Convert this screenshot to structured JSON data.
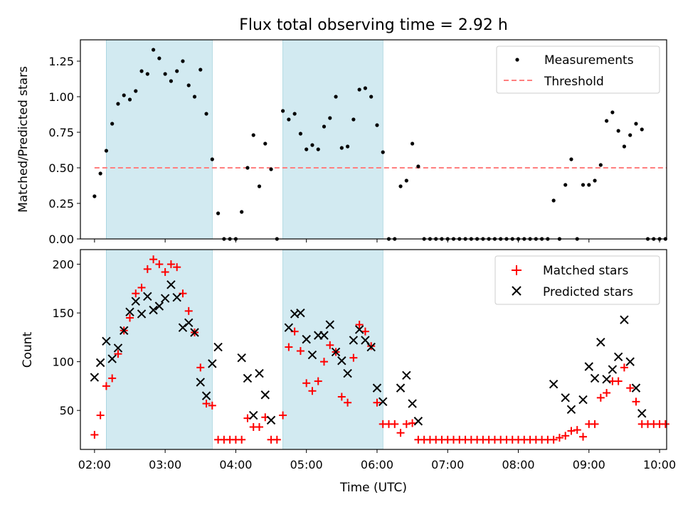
{
  "chart_data": {
    "type": "scatter",
    "title": "Flux total observing time = 2.92 h",
    "xlabel": "Time (UTC)",
    "x_ticks": [
      "02:00",
      "03:00",
      "04:00",
      "05:00",
      "06:00",
      "07:00",
      "08:00",
      "09:00",
      "10:00"
    ],
    "xlim": [
      "01:48",
      "10:06"
    ],
    "shaded_intervals": [
      [
        "02:10",
        "03:40"
      ],
      [
        "04:40",
        "06:05"
      ]
    ],
    "colors": {
      "shade": "#add8e6",
      "threshold": "#ff7f7f",
      "matched": "#ff0000",
      "predicted": "#000000",
      "measurements": "#000000"
    },
    "top_panel": {
      "ylabel": "Matched/Predicted stars",
      "ylim": [
        0,
        1.4
      ],
      "y_ticks": [
        "0.00",
        "0.25",
        "0.50",
        "0.75",
        "1.00",
        "1.25"
      ],
      "legend": [
        "Measurements",
        "Threshold"
      ],
      "legend_position": "upper right",
      "threshold": {
        "value": 0.5,
        "x_range": [
          "02:00",
          "10:06"
        ]
      },
      "series": [
        {
          "name": "Measurements",
          "x": [
            "02:00",
            "02:05",
            "02:10",
            "02:15",
            "02:20",
            "02:25",
            "02:30",
            "02:35",
            "02:40",
            "02:45",
            "02:50",
            "02:55",
            "03:00",
            "03:05",
            "03:10",
            "03:15",
            "03:20",
            "03:25",
            "03:30",
            "03:35",
            "03:40",
            "03:45",
            "03:50",
            "03:55",
            "04:00",
            "04:05",
            "04:10",
            "04:15",
            "04:20",
            "04:25",
            "04:30",
            "04:35",
            "04:40",
            "04:45",
            "04:50",
            "04:55",
            "05:00",
            "05:05",
            "05:10",
            "05:15",
            "05:20",
            "05:25",
            "05:30",
            "05:35",
            "05:40",
            "05:45",
            "05:50",
            "05:55",
            "06:00",
            "06:05",
            "06:10",
            "06:15",
            "06:20",
            "06:25",
            "06:30",
            "06:35",
            "06:40",
            "06:45",
            "06:50",
            "06:55",
            "07:00",
            "07:05",
            "07:10",
            "07:15",
            "07:20",
            "07:25",
            "07:30",
            "07:35",
            "07:40",
            "07:45",
            "07:50",
            "07:55",
            "08:00",
            "08:05",
            "08:10",
            "08:15",
            "08:20",
            "08:25",
            "08:30",
            "08:35",
            "08:40",
            "08:45",
            "08:50",
            "08:55",
            "09:00",
            "09:05",
            "09:10",
            "09:15",
            "09:20",
            "09:25",
            "09:30",
            "09:35",
            "09:40",
            "09:45",
            "09:50",
            "09:55",
            "10:00",
            "10:05"
          ],
          "y": [
            0.3,
            0.46,
            0.62,
            0.81,
            0.95,
            1.01,
            0.98,
            1.04,
            1.18,
            1.16,
            1.33,
            1.27,
            1.16,
            1.11,
            1.18,
            1.25,
            1.08,
            1.0,
            1.19,
            0.88,
            0.56,
            0.18,
            0.0,
            0.0,
            0.0,
            0.19,
            0.5,
            0.73,
            0.37,
            0.67,
            0.49,
            0.0,
            0.9,
            0.84,
            0.88,
            0.74,
            0.63,
            0.66,
            0.63,
            0.79,
            0.85,
            1.0,
            0.64,
            0.65,
            0.84,
            1.05,
            1.06,
            1.0,
            0.8,
            0.61,
            0.0,
            0.0,
            0.37,
            0.41,
            0.67,
            0.51,
            0.0,
            0.0,
            0.0,
            0.0,
            0.0,
            0.0,
            0.0,
            0.0,
            0.0,
            0.0,
            0.0,
            0.0,
            0.0,
            0.0,
            0.0,
            0.0,
            0.0,
            0.0,
            0.0,
            0.0,
            0.0,
            0.0,
            0.27,
            0.0,
            0.38,
            0.56,
            0.0,
            0.38,
            0.38,
            0.41,
            0.52,
            0.83,
            0.89,
            0.76,
            0.65,
            0.73,
            0.81,
            0.77,
            0.0,
            0.0,
            0.0,
            0.0
          ]
        }
      ]
    },
    "bottom_panel": {
      "ylabel": "Count",
      "ylim": [
        10,
        215
      ],
      "y_ticks": [
        "50",
        "100",
        "150",
        "200"
      ],
      "legend": [
        "Matched stars",
        "Predicted stars"
      ],
      "legend_position": "upper right",
      "series": [
        {
          "name": "Matched stars",
          "marker": "+",
          "x": [
            "02:00",
            "02:05",
            "02:10",
            "02:15",
            "02:20",
            "02:25",
            "02:30",
            "02:35",
            "02:40",
            "02:45",
            "02:50",
            "02:55",
            "03:00",
            "03:05",
            "03:10",
            "03:15",
            "03:20",
            "03:25",
            "03:30",
            "03:35",
            "03:40",
            "03:45",
            "03:50",
            "03:55",
            "04:00",
            "04:05",
            "04:10",
            "04:15",
            "04:20",
            "04:25",
            "04:30",
            "04:35",
            "04:40",
            "04:45",
            "04:50",
            "04:55",
            "05:00",
            "05:05",
            "05:10",
            "05:15",
            "05:20",
            "05:25",
            "05:30",
            "05:35",
            "05:40",
            "05:45",
            "05:50",
            "05:55",
            "06:00",
            "06:05",
            "06:10",
            "06:15",
            "06:20",
            "06:25",
            "06:30",
            "06:35",
            "06:40",
            "06:45",
            "06:50",
            "06:55",
            "07:00",
            "07:05",
            "07:10",
            "07:15",
            "07:20",
            "07:25",
            "07:30",
            "07:35",
            "07:40",
            "07:45",
            "07:50",
            "07:55",
            "08:00",
            "08:05",
            "08:10",
            "08:15",
            "08:20",
            "08:25",
            "08:30",
            "08:35",
            "08:40",
            "08:45",
            "08:50",
            "08:55",
            "09:00",
            "09:05",
            "09:10",
            "09:15",
            "09:20",
            "09:25",
            "09:30",
            "09:35",
            "09:40",
            "09:45",
            "09:50",
            "09:55",
            "10:00",
            "10:05"
          ],
          "y": [
            25,
            45,
            75,
            83,
            108,
            132,
            145,
            170,
            176,
            195,
            205,
            200,
            192,
            200,
            197,
            170,
            152,
            130,
            94,
            57,
            55,
            20,
            20,
            20,
            20,
            20,
            42,
            33,
            33,
            43,
            20,
            20,
            45,
            115,
            131,
            111,
            78,
            70,
            80,
            100,
            117,
            110,
            64,
            58,
            104,
            138,
            131,
            116,
            58,
            36,
            36,
            36,
            27,
            36,
            37,
            20,
            20,
            20,
            20,
            20,
            20,
            20,
            20,
            20,
            20,
            20,
            20,
            20,
            20,
            20,
            20,
            20,
            20,
            20,
            20,
            20,
            20,
            20,
            20,
            22,
            24,
            29,
            30,
            23,
            36,
            36,
            63,
            68,
            80,
            80,
            94,
            73,
            59,
            36,
            36,
            36,
            36,
            36
          ]
        },
        {
          "name": "Predicted stars",
          "marker": "x",
          "x": [
            "02:00",
            "02:05",
            "02:10",
            "02:15",
            "02:20",
            "02:25",
            "02:30",
            "02:35",
            "02:40",
            "02:45",
            "02:50",
            "02:55",
            "03:00",
            "03:05",
            "03:10",
            "03:15",
            "03:20",
            "03:25",
            "03:30",
            "03:35",
            "03:40",
            "03:45",
            "04:05",
            "04:10",
            "04:15",
            "04:20",
            "04:25",
            "04:30",
            "04:45",
            "04:50",
            "04:55",
            "05:00",
            "05:05",
            "05:10",
            "05:15",
            "05:20",
            "05:25",
            "05:30",
            "05:35",
            "05:40",
            "05:45",
            "05:50",
            "05:55",
            "06:00",
            "06:05",
            "06:20",
            "06:25",
            "06:30",
            "06:35",
            "08:30",
            "08:40",
            "08:45",
            "08:55",
            "09:00",
            "09:05",
            "09:10",
            "09:15",
            "09:20",
            "09:25",
            "09:30",
            "09:35",
            "09:40",
            "09:45"
          ],
          "y": [
            84,
            99,
            121,
            103,
            114,
            132,
            151,
            162,
            149,
            167,
            153,
            157,
            165,
            179,
            166,
            135,
            140,
            130,
            79,
            65,
            98,
            115,
            104,
            83,
            45,
            88,
            66,
            40,
            135,
            149,
            150,
            123,
            107,
            127,
            127,
            138,
            110,
            101,
            88,
            122,
            133,
            122,
            115,
            73,
            59,
            73,
            86,
            57,
            39,
            77,
            63,
            51,
            61,
            95,
            83,
            120,
            82,
            92,
            105,
            143,
            100,
            73,
            47
          ]
        }
      ]
    }
  }
}
